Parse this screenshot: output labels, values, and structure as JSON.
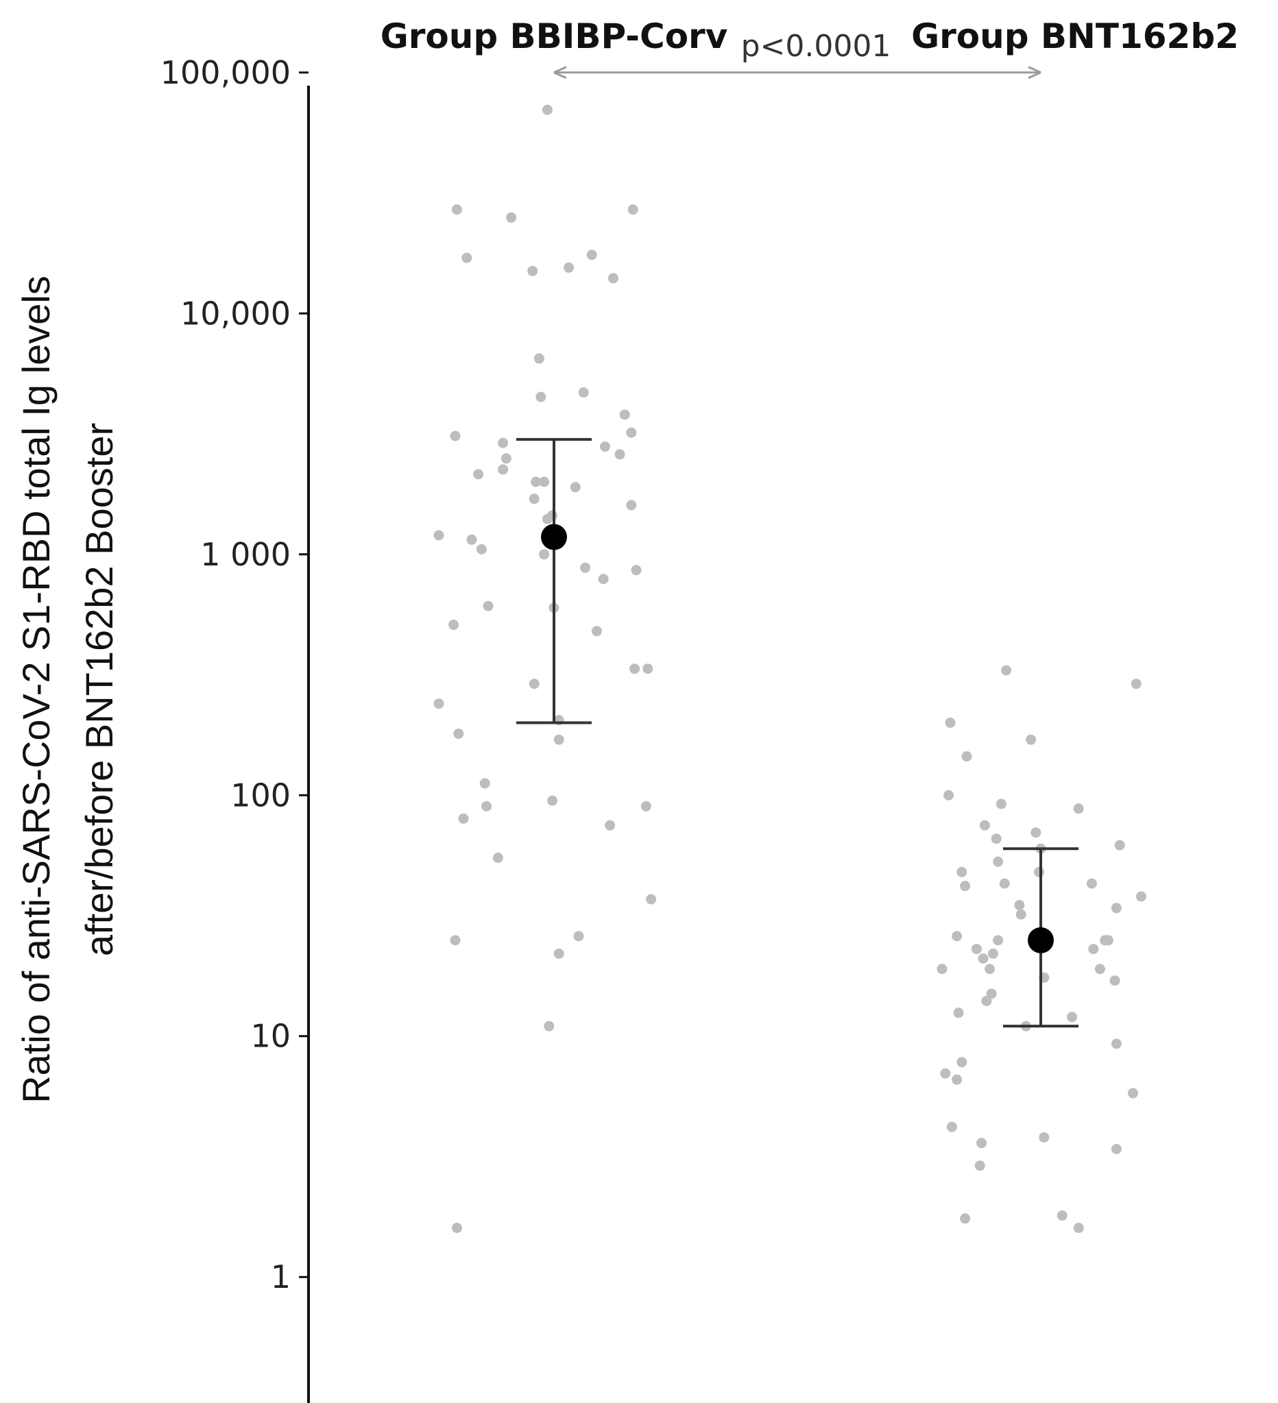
{
  "chart_data": {
    "type": "scatter",
    "y_scale": "log",
    "ylim": [
      0.3,
      200000
    ],
    "y_ticks": [
      {
        "value": 1,
        "label": "1"
      },
      {
        "value": 10,
        "label": "10"
      },
      {
        "value": 100,
        "label": "100"
      },
      {
        "value": 1000,
        "label": "1 000"
      },
      {
        "value": 10000,
        "label": "10,000"
      },
      {
        "value": 100000,
        "label": "100,000"
      }
    ],
    "ylabel_lines": [
      "Ratio of anti-SARS-CoV-2 S1-RBD total Ig levels",
      "after/before BNT162b2 Booster"
    ],
    "groups": [
      "Group BBIBP-Corv",
      "Group BNT162b2"
    ],
    "annotation": {
      "text": "p<0.0001",
      "from_group": 0,
      "to_group": 1,
      "y": 100000
    },
    "grid": false,
    "colors": {
      "points": "#bdbdbd",
      "summary": "#000000",
      "errorbar": "#333333",
      "bracket": "#9a9a9a"
    },
    "series": [
      {
        "group": 0,
        "summary": {
          "center": 1180,
          "lower": 200,
          "upper": 3000
        },
        "points": [
          {
            "offset": -0.04,
            "y": 70000
          },
          {
            "offset": -0.59,
            "y": 27000
          },
          {
            "offset": -0.26,
            "y": 25000
          },
          {
            "offset": 0.48,
            "y": 27000
          },
          {
            "offset": -0.53,
            "y": 17000
          },
          {
            "offset": 0.23,
            "y": 17500
          },
          {
            "offset": 0.09,
            "y": 15500
          },
          {
            "offset": -0.13,
            "y": 15000
          },
          {
            "offset": 0.36,
            "y": 14000
          },
          {
            "offset": -0.09,
            "y": 6500
          },
          {
            "offset": -0.08,
            "y": 4500
          },
          {
            "offset": 0.18,
            "y": 4700
          },
          {
            "offset": 0.43,
            "y": 3800
          },
          {
            "offset": -0.6,
            "y": 3100
          },
          {
            "offset": 0.47,
            "y": 3200
          },
          {
            "offset": -0.31,
            "y": 2900
          },
          {
            "offset": 0.31,
            "y": 2800
          },
          {
            "offset": 0.4,
            "y": 2600
          },
          {
            "offset": -0.29,
            "y": 2500
          },
          {
            "offset": -0.31,
            "y": 2250
          },
          {
            "offset": -0.46,
            "y": 2150
          },
          {
            "offset": -0.11,
            "y": 2000
          },
          {
            "offset": -0.06,
            "y": 2000
          },
          {
            "offset": 0.13,
            "y": 1900
          },
          {
            "offset": -0.12,
            "y": 1700
          },
          {
            "offset": 0.47,
            "y": 1600
          },
          {
            "offset": -0.01,
            "y": 1450
          },
          {
            "offset": -0.04,
            "y": 1400
          },
          {
            "offset": -0.7,
            "y": 1200
          },
          {
            "offset": -0.5,
            "y": 1150
          },
          {
            "offset": -0.44,
            "y": 1050
          },
          {
            "offset": -0.06,
            "y": 1000
          },
          {
            "offset": 0.19,
            "y": 880
          },
          {
            "offset": 0.5,
            "y": 860
          },
          {
            "offset": 0.3,
            "y": 790
          },
          {
            "offset": -0.4,
            "y": 610
          },
          {
            "offset": 0.0,
            "y": 600
          },
          {
            "offset": -0.61,
            "y": 510
          },
          {
            "offset": 0.26,
            "y": 480
          },
          {
            "offset": 0.49,
            "y": 335
          },
          {
            "offset": 0.57,
            "y": 335
          },
          {
            "offset": -0.12,
            "y": 290
          },
          {
            "offset": -0.7,
            "y": 240
          },
          {
            "offset": 0.03,
            "y": 205
          },
          {
            "offset": -0.58,
            "y": 180
          },
          {
            "offset": 0.03,
            "y": 170
          },
          {
            "offset": -0.42,
            "y": 112
          },
          {
            "offset": -0.41,
            "y": 90
          },
          {
            "offset": -0.01,
            "y": 95
          },
          {
            "offset": 0.56,
            "y": 90
          },
          {
            "offset": -0.55,
            "y": 80
          },
          {
            "offset": 0.34,
            "y": 75
          },
          {
            "offset": -0.34,
            "y": 55
          },
          {
            "offset": 0.59,
            "y": 37
          },
          {
            "offset": 0.15,
            "y": 26
          },
          {
            "offset": -0.6,
            "y": 25
          },
          {
            "offset": 0.03,
            "y": 22
          },
          {
            "offset": -0.03,
            "y": 11
          },
          {
            "offset": -0.59,
            "y": 1.6
          }
        ]
      },
      {
        "group": 1,
        "summary": {
          "center": 25,
          "lower": 11,
          "upper": 60
        },
        "points": [
          {
            "offset": -0.21,
            "y": 330
          },
          {
            "offset": 0.58,
            "y": 290
          },
          {
            "offset": -0.55,
            "y": 200
          },
          {
            "offset": -0.06,
            "y": 170
          },
          {
            "offset": -0.45,
            "y": 145
          },
          {
            "offset": -0.56,
            "y": 100
          },
          {
            "offset": -0.24,
            "y": 92
          },
          {
            "offset": 0.23,
            "y": 88
          },
          {
            "offset": -0.34,
            "y": 75
          },
          {
            "offset": -0.03,
            "y": 70
          },
          {
            "offset": -0.27,
            "y": 66
          },
          {
            "offset": 0.0,
            "y": 60
          },
          {
            "offset": 0.48,
            "y": 62
          },
          {
            "offset": -0.26,
            "y": 53
          },
          {
            "offset": -0.48,
            "y": 48
          },
          {
            "offset": -0.01,
            "y": 48
          },
          {
            "offset": -0.46,
            "y": 42
          },
          {
            "offset": -0.22,
            "y": 43
          },
          {
            "offset": 0.31,
            "y": 43
          },
          {
            "offset": 0.61,
            "y": 38
          },
          {
            "offset": -0.13,
            "y": 35
          },
          {
            "offset": -0.12,
            "y": 32
          },
          {
            "offset": 0.46,
            "y": 34
          },
          {
            "offset": -0.51,
            "y": 26
          },
          {
            "offset": -0.26,
            "y": 25
          },
          {
            "offset": 0.39,
            "y": 25
          },
          {
            "offset": 0.41,
            "y": 25
          },
          {
            "offset": 0.32,
            "y": 23
          },
          {
            "offset": -0.39,
            "y": 23
          },
          {
            "offset": -0.29,
            "y": 22
          },
          {
            "offset": -0.35,
            "y": 21
          },
          {
            "offset": -0.31,
            "y": 19
          },
          {
            "offset": -0.6,
            "y": 19
          },
          {
            "offset": 0.36,
            "y": 19
          },
          {
            "offset": 0.02,
            "y": 17.5
          },
          {
            "offset": 0.45,
            "y": 17
          },
          {
            "offset": -0.3,
            "y": 15
          },
          {
            "offset": -0.33,
            "y": 14
          },
          {
            "offset": -0.5,
            "y": 12.5
          },
          {
            "offset": 0.19,
            "y": 12
          },
          {
            "offset": -0.09,
            "y": 11
          },
          {
            "offset": 0.46,
            "y": 9.3
          },
          {
            "offset": -0.48,
            "y": 7.8
          },
          {
            "offset": -0.58,
            "y": 7
          },
          {
            "offset": -0.51,
            "y": 6.6
          },
          {
            "offset": 0.56,
            "y": 5.8
          },
          {
            "offset": -0.54,
            "y": 4.2
          },
          {
            "offset": 0.02,
            "y": 3.8
          },
          {
            "offset": -0.36,
            "y": 3.6
          },
          {
            "offset": 0.46,
            "y": 3.4
          },
          {
            "offset": -0.37,
            "y": 2.9
          },
          {
            "offset": -0.46,
            "y": 1.75
          },
          {
            "offset": 0.13,
            "y": 1.8
          },
          {
            "offset": 0.23,
            "y": 1.6
          }
        ]
      }
    ]
  }
}
